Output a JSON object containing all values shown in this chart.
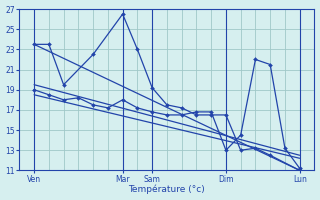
{
  "background_color": "#d6efef",
  "grid_color": "#a0c8c8",
  "line_color": "#2244aa",
  "xlabel": "Température (°c)",
  "ylim": [
    11,
    27
  ],
  "yticks": [
    11,
    13,
    15,
    17,
    19,
    21,
    23,
    25,
    27
  ],
  "xlim": [
    0,
    40
  ],
  "vline_positions": [
    2,
    14,
    18,
    28,
    38
  ],
  "day_labels": [
    "Ven",
    "Mar",
    "Sam",
    "Dim",
    "Lun"
  ],
  "day_tick_x": [
    2,
    14,
    18,
    28,
    38
  ],
  "grid_x_positions": [
    2,
    4,
    6,
    8,
    10,
    12,
    14,
    16,
    18,
    20,
    22,
    24,
    26,
    28,
    30,
    32,
    34,
    36,
    38,
    40
  ],
  "series1_x": [
    2,
    4,
    6,
    10,
    14,
    16,
    18,
    20,
    22,
    24,
    26,
    28,
    30,
    32,
    34,
    38
  ],
  "series1_y": [
    23.5,
    23.5,
    19.5,
    22.5,
    26.5,
    23.0,
    19.2,
    17.5,
    17.2,
    16.5,
    16.5,
    16.5,
    13.0,
    13.2,
    12.5,
    11.0
  ],
  "series2_x": [
    2,
    4,
    6,
    8,
    10,
    12,
    14,
    16,
    18,
    20,
    22,
    24,
    26,
    28,
    30,
    32,
    34,
    36,
    38
  ],
  "series2_y": [
    19.0,
    18.5,
    18.0,
    18.2,
    17.5,
    17.2,
    18.0,
    17.2,
    16.8,
    16.5,
    16.5,
    16.8,
    16.8,
    13.0,
    14.5,
    22.0,
    21.5,
    13.2,
    11.2
  ],
  "trend1_x": [
    2,
    38
  ],
  "trend1_y": [
    23.5,
    11.0
  ],
  "trend2_x": [
    2,
    38
  ],
  "trend2_y": [
    19.5,
    12.5
  ],
  "trend3_x": [
    2,
    38
  ],
  "trend3_y": [
    18.5,
    12.2
  ]
}
